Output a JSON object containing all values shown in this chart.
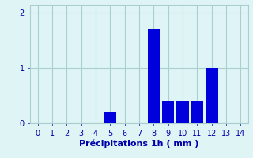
{
  "categories": [
    0,
    1,
    2,
    3,
    4,
    5,
    6,
    7,
    8,
    9,
    10,
    11,
    12,
    13,
    14
  ],
  "values": [
    0,
    0,
    0,
    0,
    0,
    0.2,
    0,
    0,
    1.7,
    0.4,
    0.4,
    0.4,
    1.0,
    0,
    0
  ],
  "bar_color": "#0000dd",
  "xlabel": "Précipitations 1h ( mm )",
  "xlim": [
    -0.5,
    14.5
  ],
  "ylim": [
    0,
    2.15
  ],
  "yticks": [
    0,
    1,
    2
  ],
  "xticks": [
    0,
    1,
    2,
    3,
    4,
    5,
    6,
    7,
    8,
    9,
    10,
    11,
    12,
    13,
    14
  ],
  "background_color": "#dff4f4",
  "grid_color": "#aacfcf",
  "xlabel_fontsize": 8,
  "tick_fontsize": 7,
  "tick_color": "#0000aa",
  "bar_width": 0.85
}
